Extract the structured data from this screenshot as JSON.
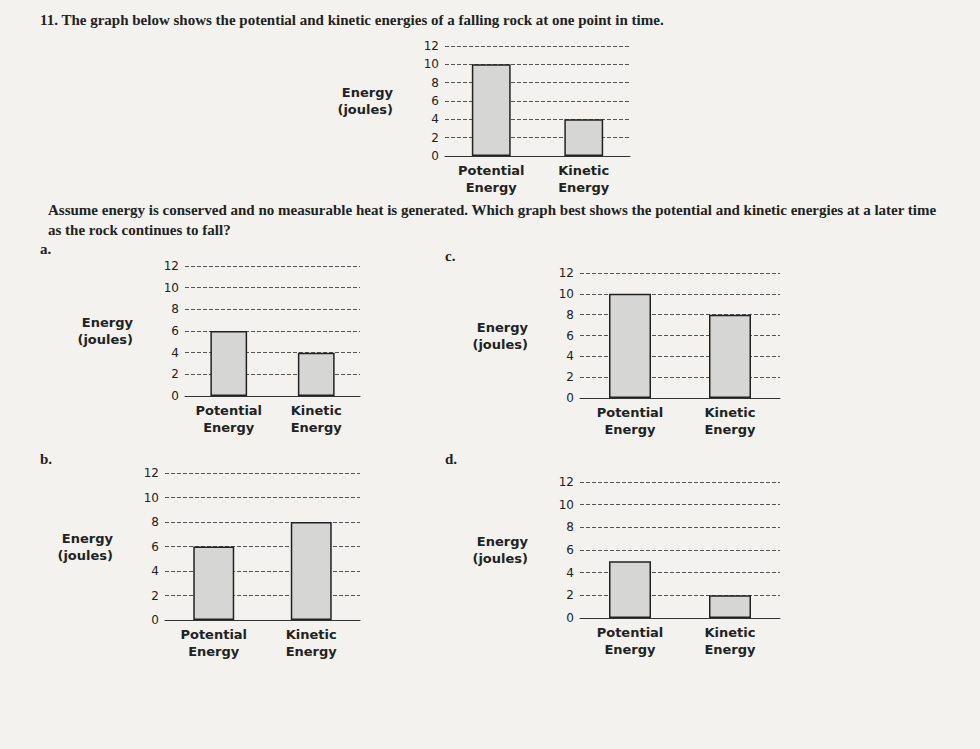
{
  "question": {
    "number": "11.",
    "text": "The graph below shows the potential and kinetic energies of a falling rock at one point in time.",
    "prompt": "Assume energy is conserved and no measurable heat is generated. Which graph best shows the potential and kinetic energies at a later time as the rock continues to fall?"
  },
  "chart_data": [
    {
      "type": "bar",
      "categories": [
        "Potential Energy",
        "Kinetic Energy"
      ],
      "values": [
        10,
        4
      ],
      "color": "#d6d6d4",
      "ylabel": "Energy (joules)",
      "ylim": [
        0,
        12
      ],
      "yticks": [
        0,
        2,
        4,
        6,
        8,
        10,
        12
      ],
      "grid": true
    },
    {
      "type": "bar",
      "title": "a.",
      "categories": [
        "Potential Energy",
        "Kinetic Energy"
      ],
      "values": [
        6,
        4
      ],
      "color": "#d6d6d4",
      "ylabel": "Energy (joules)",
      "ylim": [
        0,
        12
      ],
      "yticks": [
        0,
        2,
        4,
        6,
        8,
        10,
        12
      ],
      "grid": true
    },
    {
      "type": "bar",
      "title": "b.",
      "categories": [
        "Potential Energy",
        "Kinetic Energy"
      ],
      "values": [
        6,
        8
      ],
      "color": "#d6d6d4",
      "ylabel": "Energy (joules)",
      "ylim": [
        0,
        12
      ],
      "yticks": [
        0,
        2,
        4,
        6,
        8,
        10,
        12
      ],
      "grid": true
    },
    {
      "type": "bar",
      "title": "c.",
      "categories": [
        "Potential Energy",
        "Kinetic Energy"
      ],
      "values": [
        10,
        8
      ],
      "color": "#d6d6d4",
      "ylabel": "Energy (joules)",
      "ylim": [
        0,
        12
      ],
      "yticks": [
        0,
        2,
        4,
        6,
        8,
        10,
        12
      ],
      "grid": true
    },
    {
      "type": "bar",
      "title": "d.",
      "categories": [
        "Potential Energy",
        "Kinetic Energy"
      ],
      "values": [
        5,
        2
      ],
      "color": "#d6d6d4",
      "ylabel": "Energy (joules)",
      "ylim": [
        0,
        12
      ],
      "yticks": [
        0,
        2,
        4,
        6,
        8,
        10,
        12
      ],
      "grid": true
    }
  ]
}
